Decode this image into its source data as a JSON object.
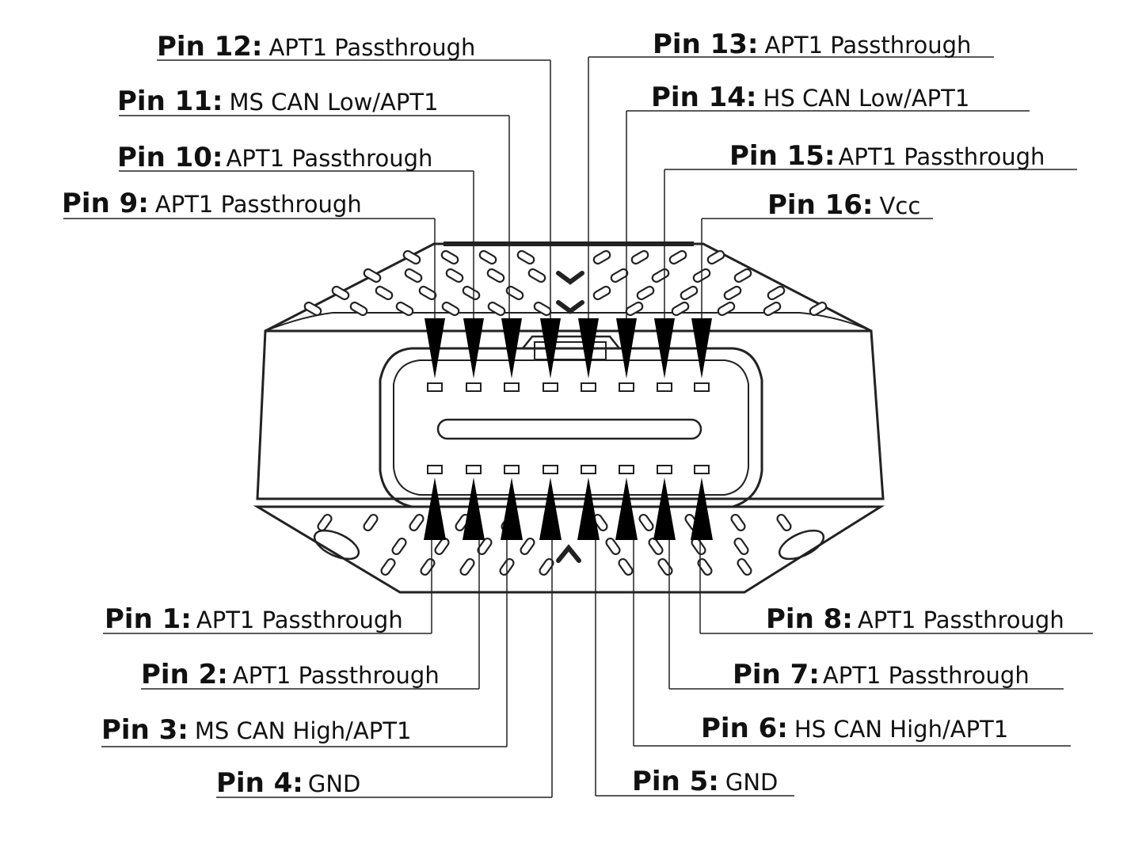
{
  "pins": {
    "top": [
      {
        "pin": "Pin 9:",
        "func": "APT1 Passthrough"
      },
      {
        "pin": "Pin 10:",
        "func": "APT1 Passthrough"
      },
      {
        "pin": "Pin 11:",
        "func": "MS CAN Low/APT1"
      },
      {
        "pin": "Pin 12:",
        "func": "APT1 Passthrough"
      },
      {
        "pin": "Pin 13:",
        "func": "APT1 Passthrough"
      },
      {
        "pin": "Pin 14:",
        "func": "HS CAN Low/APT1"
      },
      {
        "pin": "Pin 15:",
        "func": "APT1 Passthrough"
      },
      {
        "pin": "Pin 16:",
        "func": "Vcc"
      }
    ],
    "bottom": [
      {
        "pin": "Pin 1:",
        "func": "APT1 Passthrough"
      },
      {
        "pin": "Pin 2:",
        "func": "APT1 Passthrough"
      },
      {
        "pin": "Pin 3:",
        "func": "MS CAN High/APT1"
      },
      {
        "pin": "Pin 4:",
        "func": "GND"
      },
      {
        "pin": "Pin 5:",
        "func": "GND"
      },
      {
        "pin": "Pin 6:",
        "func": "HS CAN High/APT1"
      },
      {
        "pin": "Pin 7:",
        "func": "APT1 Passthrough"
      },
      {
        "pin": "Pin 8:",
        "func": "APT1 Passthrough"
      }
    ]
  },
  "colors": {
    "line": "#222222",
    "background": "#ffffff"
  }
}
